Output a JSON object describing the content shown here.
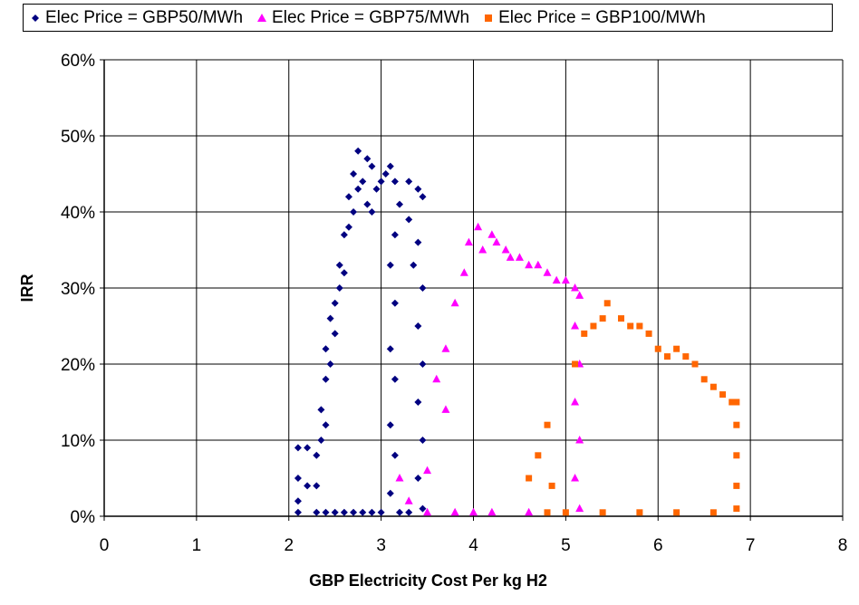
{
  "chart_data": {
    "type": "scatter",
    "title": "",
    "xlabel": "GBP Electricity Cost Per kg H2",
    "ylabel": "IRR",
    "xlim": [
      0,
      8
    ],
    "ylim": [
      0,
      0.6
    ],
    "x_ticks": [
      "0",
      "1",
      "2",
      "3",
      "4",
      "5",
      "6",
      "7",
      "8"
    ],
    "y_ticks": [
      "0%",
      "10%",
      "20%",
      "30%",
      "40%",
      "50%",
      "60%"
    ],
    "grid": true,
    "legend_position": "top",
    "series": [
      {
        "name": "Elec Price = GBP50/MWh",
        "marker": "diamond",
        "color": "#000080",
        "x_range": [
          2.05,
          3.45
        ],
        "points": [
          [
            2.1,
            0.09
          ],
          [
            2.1,
            0.05
          ],
          [
            2.1,
            0.02
          ],
          [
            2.1,
            0.005
          ],
          [
            2.2,
            0.09
          ],
          [
            2.2,
            0.04
          ],
          [
            2.3,
            0.08
          ],
          [
            2.3,
            0.04
          ],
          [
            2.35,
            0.14
          ],
          [
            2.35,
            0.1
          ],
          [
            2.4,
            0.22
          ],
          [
            2.4,
            0.18
          ],
          [
            2.4,
            0.12
          ],
          [
            2.45,
            0.26
          ],
          [
            2.45,
            0.2
          ],
          [
            2.5,
            0.28
          ],
          [
            2.5,
            0.24
          ],
          [
            2.55,
            0.33
          ],
          [
            2.55,
            0.3
          ],
          [
            2.6,
            0.37
          ],
          [
            2.6,
            0.32
          ],
          [
            2.65,
            0.42
          ],
          [
            2.65,
            0.38
          ],
          [
            2.7,
            0.45
          ],
          [
            2.7,
            0.4
          ],
          [
            2.75,
            0.48
          ],
          [
            2.75,
            0.43
          ],
          [
            2.8,
            0.44
          ],
          [
            2.85,
            0.47
          ],
          [
            2.85,
            0.41
          ],
          [
            2.9,
            0.46
          ],
          [
            2.9,
            0.4
          ],
          [
            2.95,
            0.43
          ],
          [
            3.0,
            0.44
          ],
          [
            3.05,
            0.45
          ],
          [
            3.1,
            0.46
          ],
          [
            3.15,
            0.44
          ],
          [
            3.2,
            0.41
          ],
          [
            3.3,
            0.44
          ],
          [
            3.4,
            0.43
          ],
          [
            3.45,
            0.42
          ],
          [
            3.3,
            0.39
          ],
          [
            3.4,
            0.36
          ],
          [
            3.35,
            0.33
          ],
          [
            3.45,
            0.3
          ],
          [
            3.4,
            0.25
          ],
          [
            3.45,
            0.2
          ],
          [
            3.4,
            0.15
          ],
          [
            3.45,
            0.1
          ],
          [
            3.4,
            0.05
          ],
          [
            3.45,
            0.01
          ],
          [
            3.15,
            0.37
          ],
          [
            3.1,
            0.33
          ],
          [
            3.15,
            0.28
          ],
          [
            3.1,
            0.22
          ],
          [
            3.15,
            0.18
          ],
          [
            3.1,
            0.12
          ],
          [
            3.15,
            0.08
          ],
          [
            3.1,
            0.03
          ],
          [
            3.2,
            0.005
          ],
          [
            3.3,
            0.005
          ],
          [
            2.5,
            0.005
          ],
          [
            2.6,
            0.005
          ],
          [
            2.7,
            0.005
          ],
          [
            2.8,
            0.005
          ],
          [
            2.9,
            0.005
          ],
          [
            3.0,
            0.005
          ],
          [
            2.3,
            0.005
          ],
          [
            2.4,
            0.005
          ]
        ]
      },
      {
        "name": "Elec Price = GBP75/MWh",
        "marker": "triangle",
        "color": "#ff00ff",
        "x_range": [
          3.1,
          5.2
        ],
        "points": [
          [
            3.2,
            0.05
          ],
          [
            3.3,
            0.02
          ],
          [
            3.5,
            0.06
          ],
          [
            3.6,
            0.18
          ],
          [
            3.7,
            0.22
          ],
          [
            3.7,
            0.14
          ],
          [
            3.8,
            0.28
          ],
          [
            3.9,
            0.32
          ],
          [
            3.95,
            0.36
          ],
          [
            4.05,
            0.38
          ],
          [
            4.1,
            0.35
          ],
          [
            4.2,
            0.37
          ],
          [
            4.25,
            0.36
          ],
          [
            4.35,
            0.35
          ],
          [
            4.4,
            0.34
          ],
          [
            4.5,
            0.34
          ],
          [
            4.6,
            0.33
          ],
          [
            4.7,
            0.33
          ],
          [
            4.8,
            0.32
          ],
          [
            4.9,
            0.31
          ],
          [
            5.0,
            0.31
          ],
          [
            5.1,
            0.3
          ],
          [
            5.15,
            0.29
          ],
          [
            5.1,
            0.25
          ],
          [
            5.15,
            0.2
          ],
          [
            5.1,
            0.15
          ],
          [
            5.15,
            0.1
          ],
          [
            5.1,
            0.05
          ],
          [
            5.15,
            0.01
          ],
          [
            4.6,
            0.005
          ],
          [
            4.2,
            0.005
          ],
          [
            3.8,
            0.005
          ],
          [
            3.5,
            0.005
          ],
          [
            4.0,
            0.005
          ]
        ]
      },
      {
        "name": "Elec Price = GBP100/MWh",
        "marker": "square",
        "color": "#ff6600",
        "x_range": [
          4.6,
          6.9
        ],
        "points": [
          [
            4.6,
            0.05
          ],
          [
            4.7,
            0.08
          ],
          [
            4.8,
            0.12
          ],
          [
            4.85,
            0.04
          ],
          [
            5.1,
            0.2
          ],
          [
            5.2,
            0.24
          ],
          [
            5.3,
            0.25
          ],
          [
            5.4,
            0.26
          ],
          [
            5.45,
            0.28
          ],
          [
            5.6,
            0.26
          ],
          [
            5.7,
            0.25
          ],
          [
            5.8,
            0.25
          ],
          [
            5.9,
            0.24
          ],
          [
            6.0,
            0.22
          ],
          [
            6.1,
            0.21
          ],
          [
            6.2,
            0.22
          ],
          [
            6.3,
            0.21
          ],
          [
            6.4,
            0.2
          ],
          [
            6.5,
            0.18
          ],
          [
            6.6,
            0.17
          ],
          [
            6.7,
            0.16
          ],
          [
            6.8,
            0.15
          ],
          [
            6.85,
            0.15
          ],
          [
            6.85,
            0.12
          ],
          [
            6.85,
            0.08
          ],
          [
            6.85,
            0.04
          ],
          [
            6.85,
            0.01
          ],
          [
            6.6,
            0.005
          ],
          [
            6.2,
            0.005
          ],
          [
            5.8,
            0.005
          ],
          [
            5.4,
            0.005
          ],
          [
            5.0,
            0.005
          ],
          [
            4.8,
            0.005
          ]
        ]
      }
    ]
  }
}
